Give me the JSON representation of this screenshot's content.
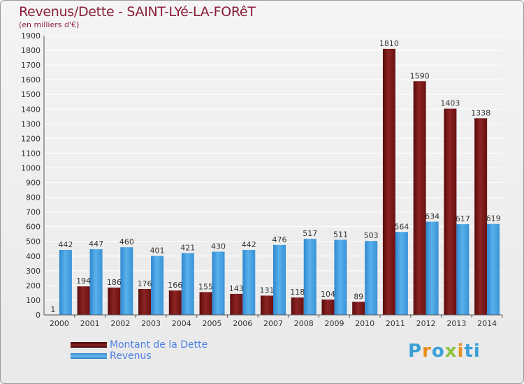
{
  "chart_data": {
    "type": "bar",
    "title": "Revenus/Dette - SAINT-LYé-LA-FORêT",
    "subtitle": "(en milliers d'€)",
    "categories": [
      "2000",
      "2001",
      "2002",
      "2003",
      "2004",
      "2005",
      "2006",
      "2007",
      "2008",
      "2009",
      "2010",
      "2011",
      "2012",
      "2013",
      "2014"
    ],
    "series": [
      {
        "name": "Montant de la Dette",
        "color": "#7a1414",
        "values": [
          1,
          194,
          186,
          176,
          166,
          155,
          143,
          131,
          118,
          104,
          89,
          1810,
          1590,
          1403,
          1338
        ]
      },
      {
        "name": "Revenus",
        "color": "#3f99dc",
        "values": [
          442,
          447,
          460,
          401,
          421,
          430,
          442,
          476,
          517,
          511,
          503,
          564,
          634,
          617,
          619
        ]
      }
    ],
    "ylim": [
      0,
      1900
    ],
    "yticks": [
      0,
      100,
      200,
      300,
      400,
      500,
      600,
      700,
      800,
      900,
      1000,
      1100,
      1200,
      1300,
      1400,
      1500,
      1600,
      1700,
      1800,
      1900
    ],
    "grid": true,
    "legend_position": "bottom-left"
  },
  "logo": {
    "text": "Proxiti",
    "letters": [
      "P",
      "r",
      "o",
      "x",
      "i",
      "ti"
    ]
  }
}
